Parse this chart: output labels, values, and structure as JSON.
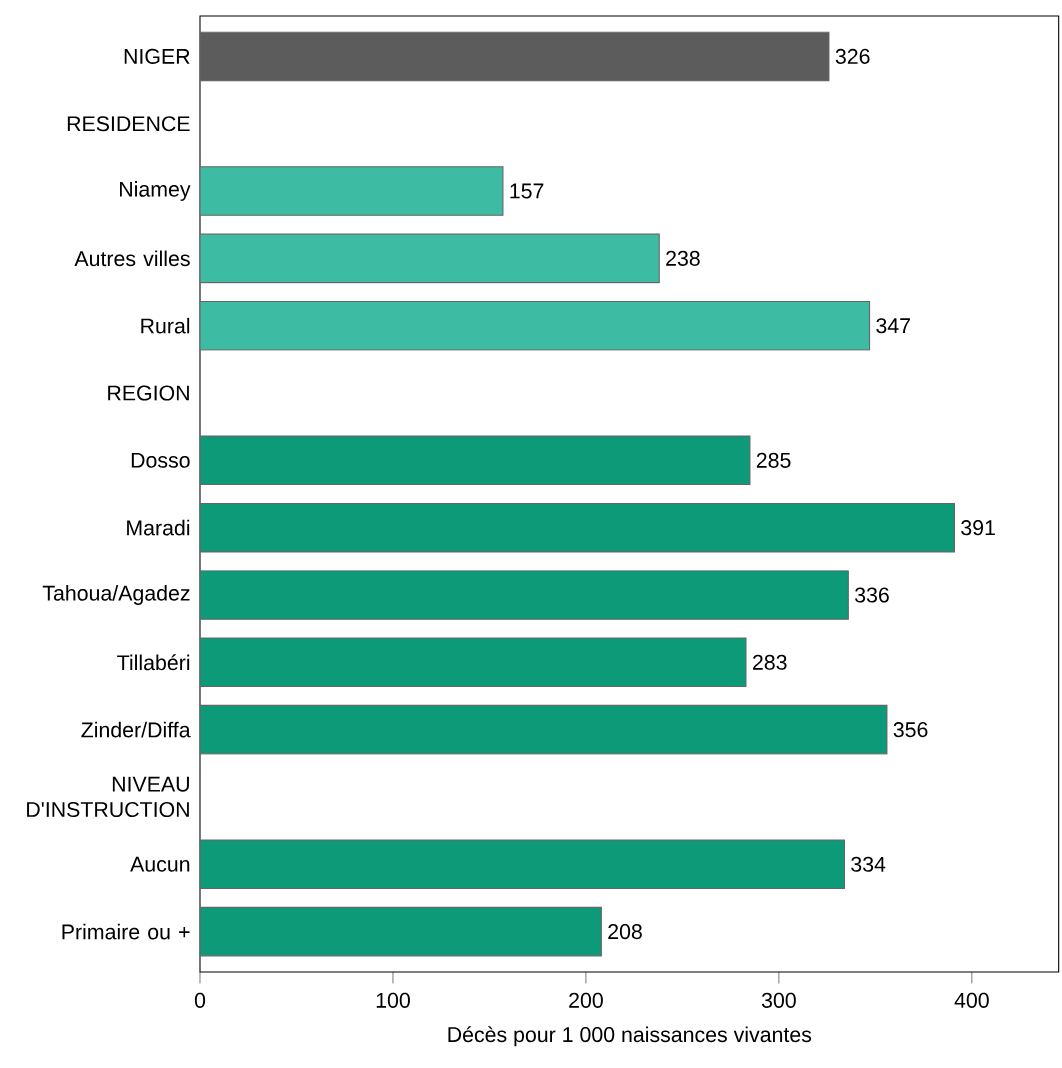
{
  "chart_data": {
    "type": "bar",
    "orientation": "horizontal",
    "xlabel": "Décès pour 1 000 naissances vivantes",
    "categories": [
      "NIGER",
      "RESIDENCE",
      "Niamey",
      "Autres villes",
      "Rural",
      "REGION",
      "Dosso",
      "Maradi",
      "Tahoua/Agadez",
      "Tillabéri",
      "Zinder/Diffa",
      "NIVEAU D'INSTRUCTION",
      "Aucun",
      "Primaire ou +"
    ],
    "values": [
      326,
      null,
      157,
      238,
      347,
      null,
      285,
      391,
      336,
      283,
      356,
      null,
      334,
      208
    ],
    "value_labels": [
      "326",
      null,
      "157",
      "238",
      "347",
      null,
      "285",
      "391",
      "336",
      "283",
      "356",
      null,
      "334",
      "208"
    ],
    "colors": [
      "#5c5c5c",
      null,
      "#3dbba3",
      "#3dbba3",
      "#3dbba3",
      null,
      "#0d9a78",
      "#0d9a78",
      "#0d9a78",
      "#0d9a78",
      "#0d9a78",
      null,
      "#0d9a78",
      "#0d9a78"
    ],
    "xlim": [
      0,
      445
    ],
    "xticks": [
      0,
      100,
      200,
      300,
      400
    ]
  }
}
